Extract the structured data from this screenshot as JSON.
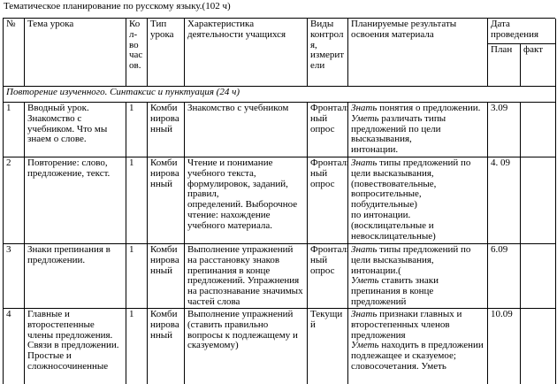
{
  "title": "Тематическое планирование  по русскому языку.(102 ч)",
  "table": {
    "header": [
      "№",
      "Тема урока",
      [
        "Ко",
        "л-",
        "во",
        "час",
        "ов."
      ],
      [
        "Тип",
        "урока"
      ],
      [
        "Характеристика",
        "деятельности учащихся"
      ],
      [
        "Виды",
        "контрол",
        "я,",
        "измерит",
        "ели"
      ],
      [
        "Планируемые результаты",
        "освоения материала"
      ],
      [
        "Дата",
        "проведения"
      ]
    ],
    "date_sub": [
      "План",
      "факт"
    ],
    "section": "Повторение изученного. Синтаксис и пунктуация (24 ч)",
    "rows": [
      [
        "1",
        [
          "Вводный урок.",
          "Знакомство с",
          "учебником. Что мы",
          "знаем о слове."
        ],
        "1",
        [
          "Комби",
          "нирова",
          "нный"
        ],
        [
          "Знакомство с учебником"
        ],
        [
          "Фронталь",
          "ный",
          "опрос"
        ],
        [
          {
            "em": "Знать",
            "t": " понятия о предложении."
          },
          {
            "em": "Уметь",
            "t": " различать типы"
          },
          "предложений по цели",
          "высказывания,",
          "интонации."
        ],
        "3.09"
      ],
      [
        "2",
        [
          "Повторение: слово,",
          "предложение, текст."
        ],
        "1",
        [
          "Комби",
          "нирова",
          "нный"
        ],
        [
          "Чтение и понимание",
          "учебного текста,",
          "формулировок, заданий,",
          "правил,",
          "определений. Выборочное",
          "чтение:  нахождение",
          "учебного материала."
        ],
        [
          "Фронталь",
          "ный",
          "опрос"
        ],
        [
          {
            "em": "Знать",
            "t": " типы предложений по"
          },
          "цели высказывания,",
          "(повествовательные,",
          "вопросительные,",
          "побудительные)",
          "по интонации.",
          "(восклицательные и",
          "невосклицательные)"
        ],
        "4. 09"
      ],
      [
        "3",
        [
          "Знаки препинания в",
          "предложении."
        ],
        "1",
        [
          "Комби",
          "нирова",
          "нный"
        ],
        [
          "Выполнение упражнений",
          "на расстановку знаков",
          "препинания  в конце",
          "предложений. Упражнения",
          "на распознавание значимых",
          "частей слова"
        ],
        [
          "Фронталь",
          "ный",
          "опрос"
        ],
        [
          {
            "em": "Знать",
            "t": " типы предложений по"
          },
          "цели высказывания,",
          "интонации.(",
          {
            "em": "Уметь",
            "t": " ставить знаки"
          },
          "препинания  в конце",
          "предложений"
        ],
        "6.09"
      ],
      [
        "4",
        [
          "Главные и",
          "второстепенные",
          "члены предложения.",
          "Связи в предложении.",
          "Простые и",
          "сложносочиненные"
        ],
        "1",
        [
          "Комби",
          "нирова",
          "нный"
        ],
        [
          "Выполнение упражнений",
          "(ставить правильно",
          "вопросы к подлежащему и",
          "сказуемому)"
        ],
        [
          "Текущи",
          "й"
        ],
        [
          {
            "em": "Знать",
            "t": " признаки главных и"
          },
          "второстепенных членов",
          "предложения",
          {
            "em": "Уметь",
            "t": " находить в предложении"
          },
          "подлежащее и сказуемое;",
          "словосочетания. Уметь"
        ],
        "10.09"
      ]
    ]
  }
}
